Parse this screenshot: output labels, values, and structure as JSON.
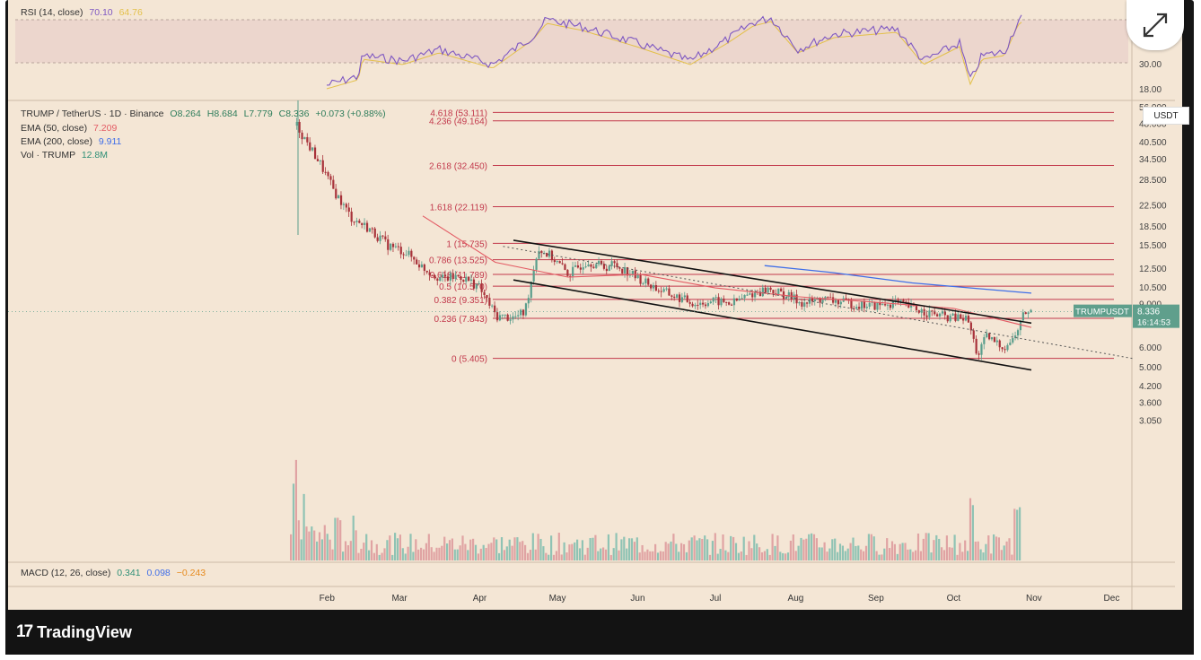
{
  "colors": {
    "bg": "#f4e6d5",
    "up": "#5a9e8c",
    "down": "#a8323a",
    "fib": "#c2384b",
    "ema50": "#e35b64",
    "ema200": "#3f6ee8",
    "rsi": "#7e57c2",
    "rsi_ma": "#e3c04a",
    "channel": "#111111"
  },
  "rsi_legend": {
    "name": "RSI (14, close)",
    "value": "70.10",
    "ma_value": "64.76"
  },
  "main_legend": {
    "symbol": "TRUMP / TetherUS · 1D · Binance",
    "o": "O8.264",
    "h": "H8.684",
    "l": "L7.779",
    "c": "C8.336",
    "chg": "+0.073 (+0.88%)",
    "ema50_name": "EMA (50, close)",
    "ema50_val": "7.209",
    "ema200_name": "EMA (200, close)",
    "ema200_val": "9.911",
    "vol_name": "Vol · TRUMP",
    "vol_val": "12.8M"
  },
  "macd_legend": {
    "name": "MACD (12, 26, close)",
    "v1": "0.341",
    "v2": "0.098",
    "v3": "−0.243"
  },
  "axis": {
    "currency": "USDT",
    "price_tag_symbol": "TRUMPUSDT",
    "price_tag_value": "8.336",
    "price_tag_timer": "16:14:53"
  },
  "brand": {
    "name": "TradingView",
    "logo": "17"
  },
  "icons": {
    "expand": "expand-arrows-icon",
    "logo": "tradingview-logo-icon"
  },
  "chart_data": {
    "type": "candlestick",
    "scale": "log",
    "rsi_ticks": [
      "30.00",
      "18.00"
    ],
    "price_ticks": [
      {
        "v": 56.0,
        "label": "56.000"
      },
      {
        "v": 48.0,
        "label": "48.000"
      },
      {
        "v": 40.5,
        "label": "40.500"
      },
      {
        "v": 34.5,
        "label": "34.500"
      },
      {
        "v": 28.5,
        "label": "28.500"
      },
      {
        "v": 22.5,
        "label": "22.500"
      },
      {
        "v": 18.5,
        "label": "18.500"
      },
      {
        "v": 15.5,
        "label": "15.500"
      },
      {
        "v": 12.5,
        "label": "12.500"
      },
      {
        "v": 10.5,
        "label": "10.500"
      },
      {
        "v": 9.0,
        "label": "9.000"
      },
      {
        "v": 6.0,
        "label": "6.000"
      },
      {
        "v": 5.0,
        "label": "5.000"
      },
      {
        "v": 4.2,
        "label": "4.200"
      },
      {
        "v": 3.6,
        "label": "3.600"
      },
      {
        "v": 3.05,
        "label": "3.050"
      }
    ],
    "months": [
      "Feb",
      "Mar",
      "Apr",
      "May",
      "Jun",
      "Jul",
      "Aug",
      "Sep",
      "Oct",
      "Nov",
      "Dec"
    ],
    "fib_levels": [
      {
        "label": "4.618 (53.111)",
        "v": 53.111
      },
      {
        "label": "4.236 (49.164)",
        "v": 49.164
      },
      {
        "label": "2.618 (32.450)",
        "v": 32.45
      },
      {
        "label": "1.618 (22.119)",
        "v": 22.119
      },
      {
        "label": "1 (15.735)",
        "v": 15.735
      },
      {
        "label": "0.786 (13.525)",
        "v": 13.525
      },
      {
        "label": "0.618 (11.789)",
        "v": 11.789
      },
      {
        "label": "0.5 (10.570)",
        "v": 10.57
      },
      {
        "label": "0.382 (9.351)",
        "v": 9.351
      },
      {
        "label": "0.236 (7.843)",
        "v": 7.843
      },
      {
        "label": "0 (5.405)",
        "v": 5.405
      }
    ],
    "price_path": [
      [
        "2025-01-20",
        47
      ],
      [
        "2025-01-24",
        40
      ],
      [
        "2025-01-29",
        33
      ],
      [
        "2025-02-03",
        26
      ],
      [
        "2025-02-10",
        20
      ],
      [
        "2025-02-17",
        18
      ],
      [
        "2025-02-24",
        15.5
      ],
      [
        "2025-03-03",
        14.5
      ],
      [
        "2025-03-10",
        12.5
      ],
      [
        "2025-03-17",
        11.3
      ],
      [
        "2025-03-24",
        11.6
      ],
      [
        "2025-03-31",
        10.6
      ],
      [
        "2025-04-07",
        8.0
      ],
      [
        "2025-04-14",
        7.9
      ],
      [
        "2025-04-18",
        8.3
      ],
      [
        "2025-04-23",
        15.0
      ],
      [
        "2025-04-28",
        14.0
      ],
      [
        "2025-05-05",
        11.8
      ],
      [
        "2025-05-12",
        13.4
      ],
      [
        "2025-05-19",
        12.6
      ],
      [
        "2025-05-22",
        13.0
      ],
      [
        "2025-05-26",
        12.4
      ],
      [
        "2025-06-02",
        11.2
      ],
      [
        "2025-06-09",
        10.2
      ],
      [
        "2025-06-16",
        9.5
      ],
      [
        "2025-06-23",
        9.0
      ],
      [
        "2025-06-30",
        9.2
      ],
      [
        "2025-07-07",
        9.0
      ],
      [
        "2025-07-14",
        9.8
      ],
      [
        "2025-07-21",
        10.3
      ],
      [
        "2025-07-28",
        9.7
      ],
      [
        "2025-08-04",
        9.0
      ],
      [
        "2025-08-11",
        9.4
      ],
      [
        "2025-08-18",
        9.1
      ],
      [
        "2025-08-25",
        8.9
      ],
      [
        "2025-09-01",
        8.8
      ],
      [
        "2025-09-08",
        9.1
      ],
      [
        "2025-09-15",
        8.6
      ],
      [
        "2025-09-22",
        8.2
      ],
      [
        "2025-09-29",
        7.9
      ],
      [
        "2025-10-06",
        7.8
      ],
      [
        "2025-10-10",
        5.5
      ],
      [
        "2025-10-13",
        6.6
      ],
      [
        "2025-10-20",
        6.0
      ],
      [
        "2025-10-24",
        6.5
      ],
      [
        "2025-10-28",
        8.3
      ],
      [
        "2025-10-31",
        8.336
      ]
    ],
    "ema50_path": [
      [
        "2025-03-10",
        20.3
      ],
      [
        "2025-04-07",
        13.2
      ],
      [
        "2025-05-05",
        11.5
      ],
      [
        "2025-06-02",
        11.8
      ],
      [
        "2025-07-01",
        10.4
      ],
      [
        "2025-08-01",
        9.6
      ],
      [
        "2025-09-01",
        9.1
      ],
      [
        "2025-10-01",
        8.6
      ],
      [
        "2025-10-31",
        7.209
      ]
    ],
    "ema200_path": [
      [
        "2025-07-20",
        12.8
      ],
      [
        "2025-08-15",
        12.0
      ],
      [
        "2025-09-15",
        10.9
      ],
      [
        "2025-10-31",
        9.911
      ]
    ],
    "channel_upper": [
      [
        "2025-04-14",
        16.2
      ],
      [
        "2025-10-31",
        7.5
      ]
    ],
    "channel_lower": [
      [
        "2025-04-14",
        11.2
      ],
      [
        "2025-10-31",
        4.85
      ]
    ],
    "trend_dotted": [
      [
        "2025-04-10",
        15.3
      ],
      [
        "2025-12-10",
        5.38
      ]
    ],
    "last_close": 8.336
  }
}
